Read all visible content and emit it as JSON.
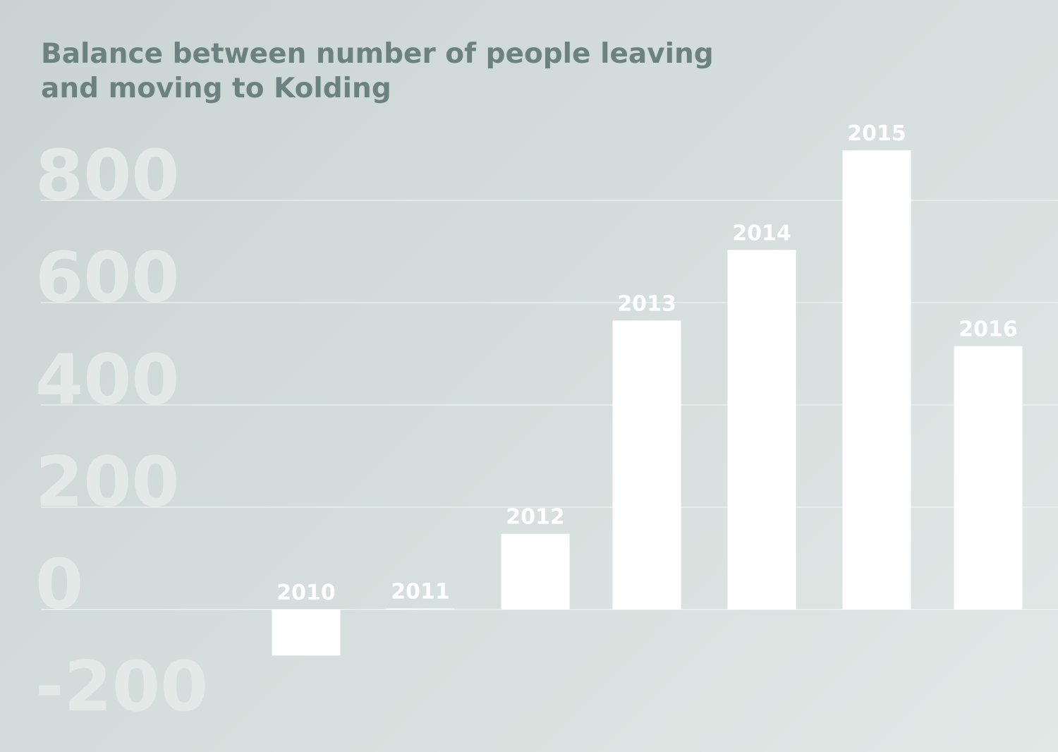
{
  "chart_data": {
    "type": "bar",
    "title": [
      "Balance between number of people leaving",
      "and moving to Kolding"
    ],
    "categories": [
      "2010",
      "2011",
      "2012",
      "2013",
      "2014",
      "2015",
      "2016"
    ],
    "values": [
      -90,
      2,
      148,
      565,
      703,
      898,
      515
    ],
    "yticks": [
      "-200",
      "0",
      "200",
      "400",
      "600",
      "800"
    ],
    "ylim": [
      -200,
      800
    ],
    "grid": true,
    "colors": {
      "bar": "#ffffff",
      "title": "#6c827e",
      "tick": "#e2e9e7",
      "grid": "#eef3f2"
    }
  }
}
